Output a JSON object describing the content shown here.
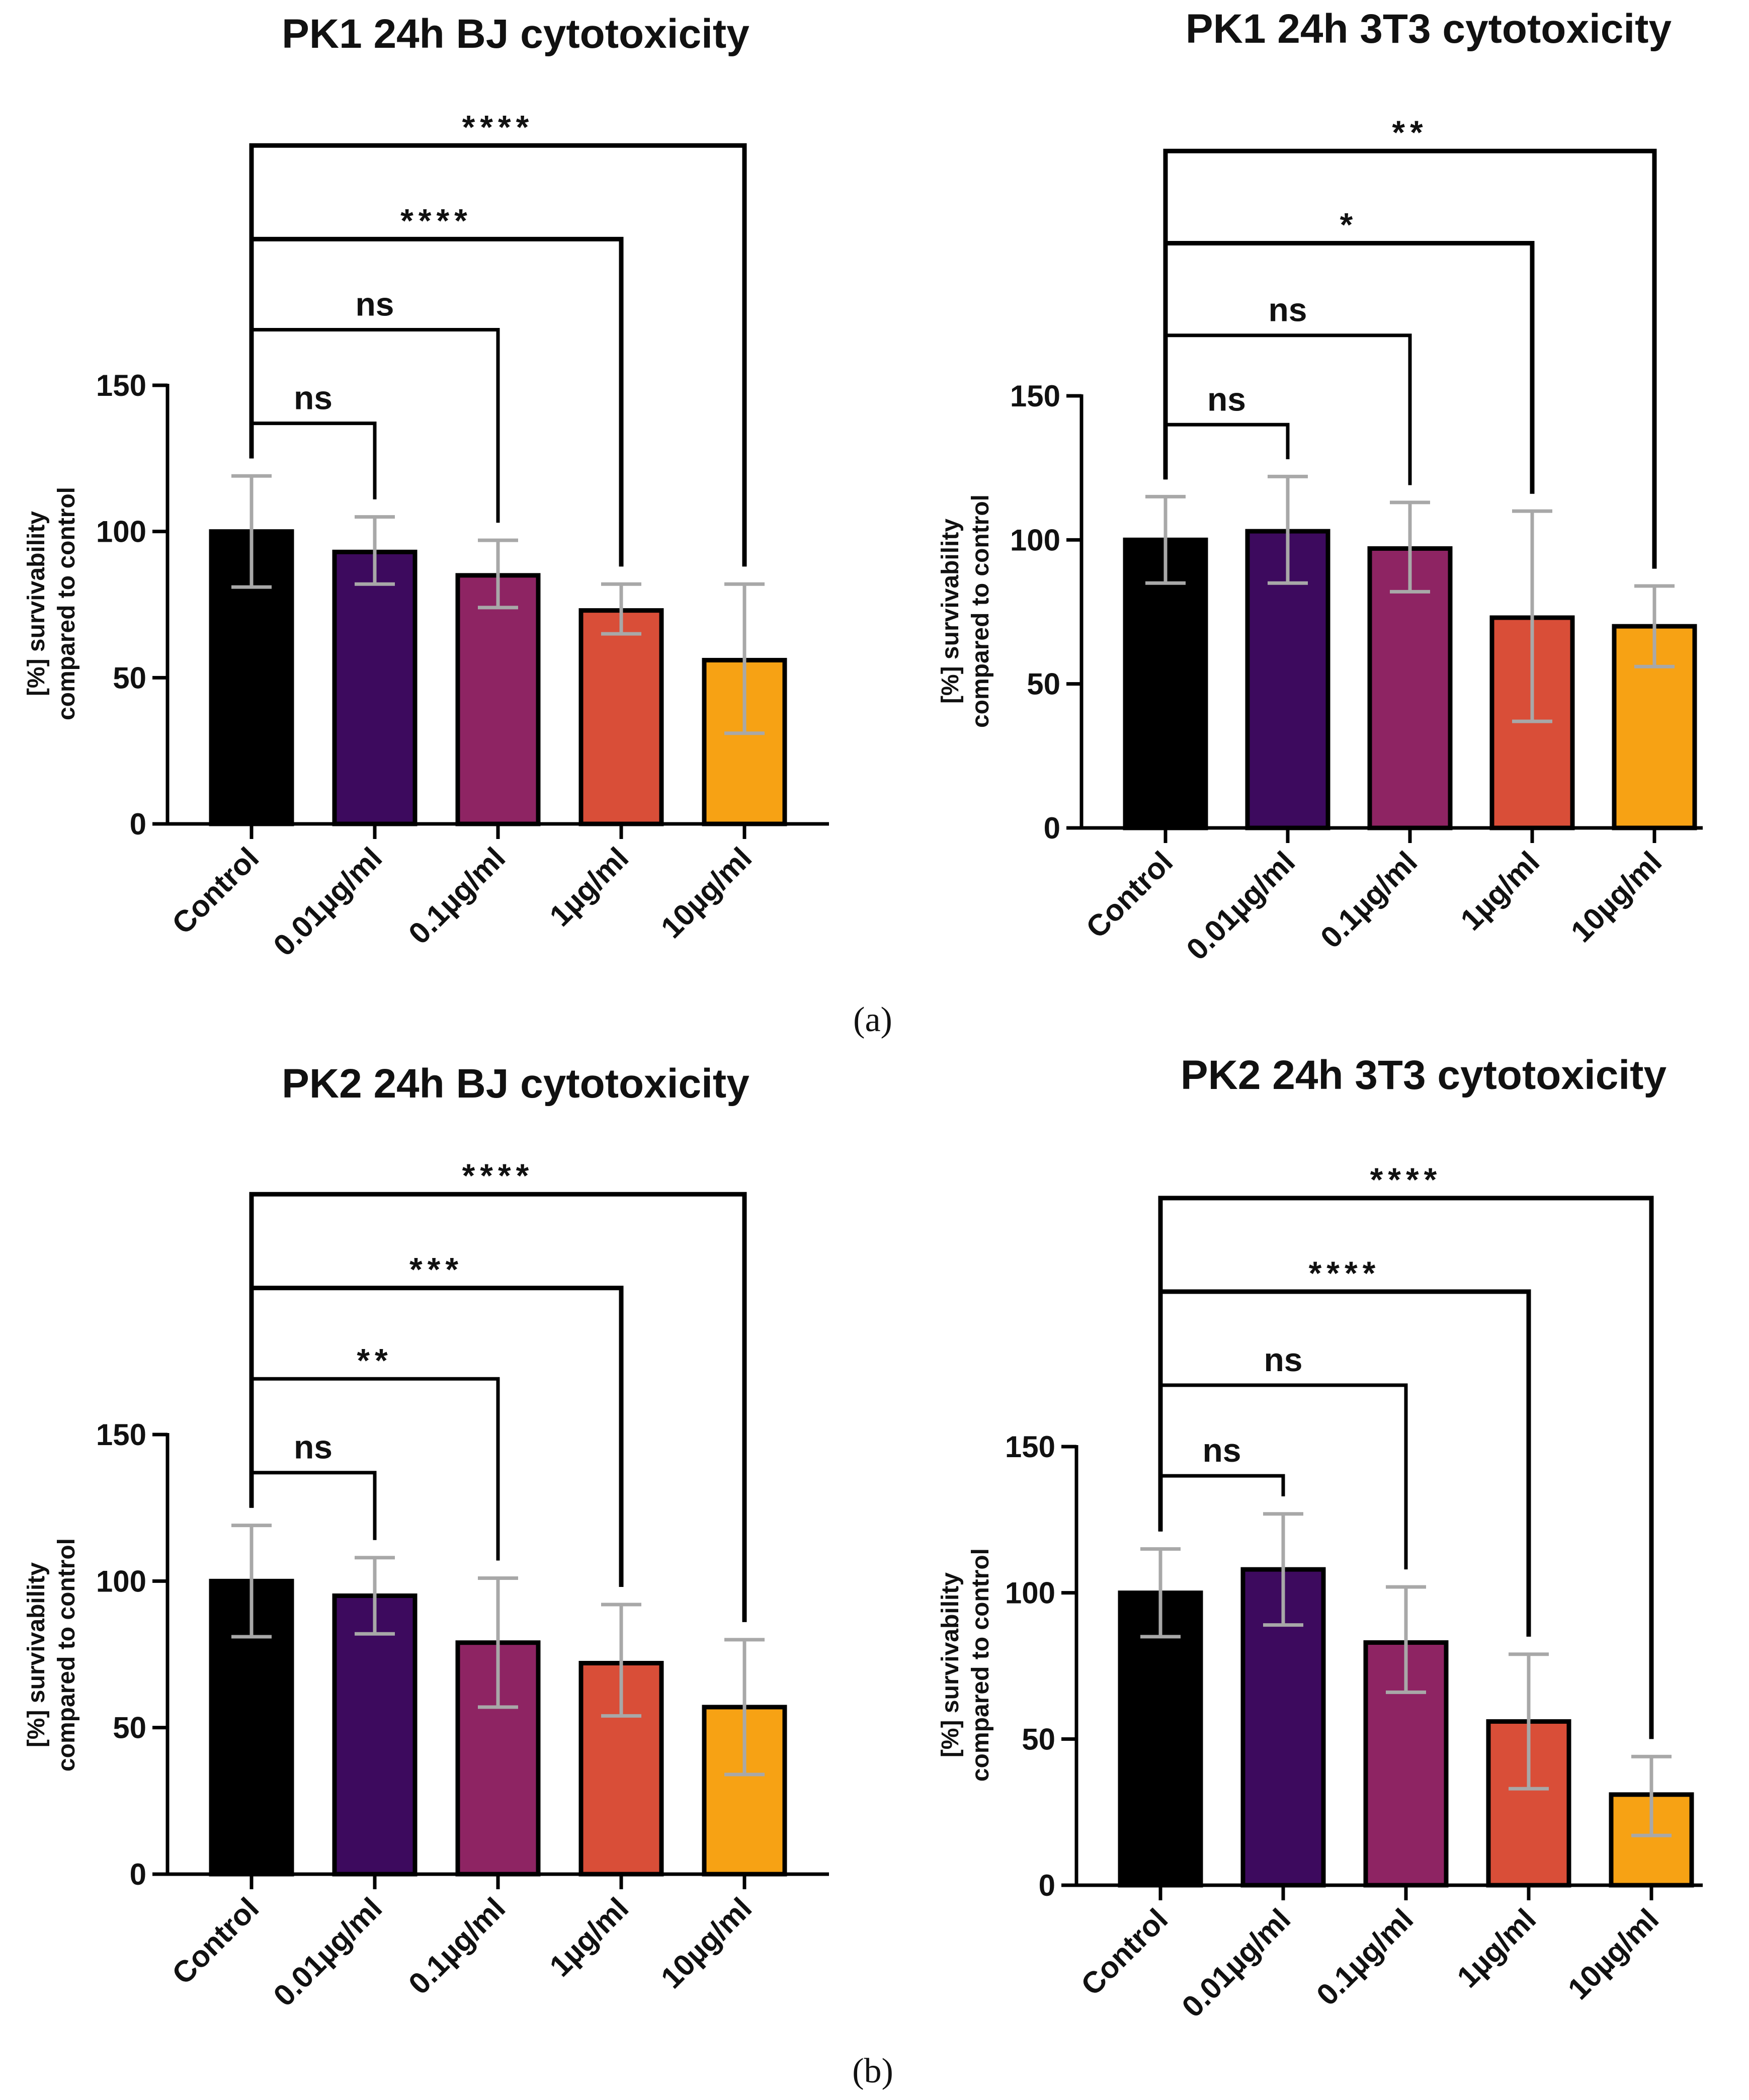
{
  "panel_labels": [
    "(a)",
    "(b)"
  ],
  "colors": {
    "bars": [
      "#000000",
      "#3d0a5e",
      "#8e2463",
      "#d94e38",
      "#f7a214"
    ],
    "error": "#a8a8a8",
    "axis": "#000000",
    "bracket": "#000000"
  },
  "chart_data": [
    {
      "type": "bar",
      "title": "PK1 24h BJ cytotoxicity",
      "xlabel": "",
      "ylabel": [
        "[%] survivability",
        "compared to control"
      ],
      "ylim": [
        0,
        150
      ],
      "yticks": [
        "0",
        "50",
        "100",
        "150"
      ],
      "categories": [
        "Control",
        "0.01µg/ml",
        "0.1µg/ml",
        "1µg/ml",
        "10µg/ml"
      ],
      "values": [
        100,
        93,
        85,
        73,
        56
      ],
      "err_low": [
        81,
        82,
        74,
        65,
        31
      ],
      "err_high": [
        119,
        105,
        97,
        82,
        82
      ],
      "comparisons": [
        {
          "label": "ns",
          "to": 1,
          "top": 137
        },
        {
          "label": "ns",
          "to": 2,
          "top": 169
        },
        {
          "label": "****",
          "to": 3,
          "top": 200
        },
        {
          "label": "****",
          "to": 4,
          "top": 232
        }
      ]
    },
    {
      "type": "bar",
      "title": "PK1 24h 3T3 cytotoxicity",
      "xlabel": "",
      "ylabel": [
        "[%] survivability",
        "compared to control"
      ],
      "ylim": [
        0,
        150
      ],
      "yticks": [
        "0",
        "50",
        "100",
        "150"
      ],
      "categories": [
        "Control",
        "0.01µg/ml",
        "0.1µg/ml",
        "1µg/ml",
        "10µg/ml"
      ],
      "values": [
        100,
        103,
        97,
        73,
        70
      ],
      "err_low": [
        85,
        85,
        82,
        37,
        56
      ],
      "err_high": [
        115,
        122,
        113,
        110,
        84
      ],
      "comparisons": [
        {
          "label": "ns",
          "to": 1,
          "top": 140
        },
        {
          "label": "ns",
          "to": 2,
          "top": 171
        },
        {
          "label": "*",
          "to": 3,
          "top": 203
        },
        {
          "label": "**",
          "to": 4,
          "top": 235
        }
      ]
    },
    {
      "type": "bar",
      "title": "PK2 24h BJ cytotoxicity",
      "xlabel": "",
      "ylabel": [
        "[%] survivability",
        "compared to control"
      ],
      "ylim": [
        0,
        150
      ],
      "yticks": [
        "0",
        "50",
        "100",
        "150"
      ],
      "categories": [
        "Control",
        "0.01µg/ml",
        "0.1µg/ml",
        "1µg/ml",
        "10µg/ml"
      ],
      "values": [
        100,
        95,
        79,
        72,
        57
      ],
      "err_low": [
        81,
        82,
        57,
        54,
        34
      ],
      "err_high": [
        119,
        108,
        101,
        92,
        80
      ],
      "comparisons": [
        {
          "label": "ns",
          "to": 1,
          "top": 137
        },
        {
          "label": "**",
          "to": 2,
          "top": 169
        },
        {
          "label": "***",
          "to": 3,
          "top": 200
        },
        {
          "label": "****",
          "to": 4,
          "top": 232
        }
      ]
    },
    {
      "type": "bar",
      "title": "PK2 24h 3T3 cytotoxicity",
      "xlabel": "",
      "ylabel": [
        "[%] survivability",
        "compared to control"
      ],
      "ylim": [
        0,
        150
      ],
      "yticks": [
        "0",
        "50",
        "100",
        "150"
      ],
      "categories": [
        "Control",
        "0.01µg/ml",
        "0.1µg/ml",
        "1µg/ml",
        "10µg/ml"
      ],
      "values": [
        100,
        108,
        83,
        56,
        31
      ],
      "err_low": [
        85,
        89,
        66,
        33,
        17
      ],
      "err_high": [
        115,
        127,
        102,
        79,
        44
      ],
      "comparisons": [
        {
          "label": "ns",
          "to": 1,
          "top": 140
        },
        {
          "label": "ns",
          "to": 2,
          "top": 171
        },
        {
          "label": "****",
          "to": 3,
          "top": 203
        },
        {
          "label": "****",
          "to": 4,
          "top": 235
        }
      ]
    }
  ]
}
